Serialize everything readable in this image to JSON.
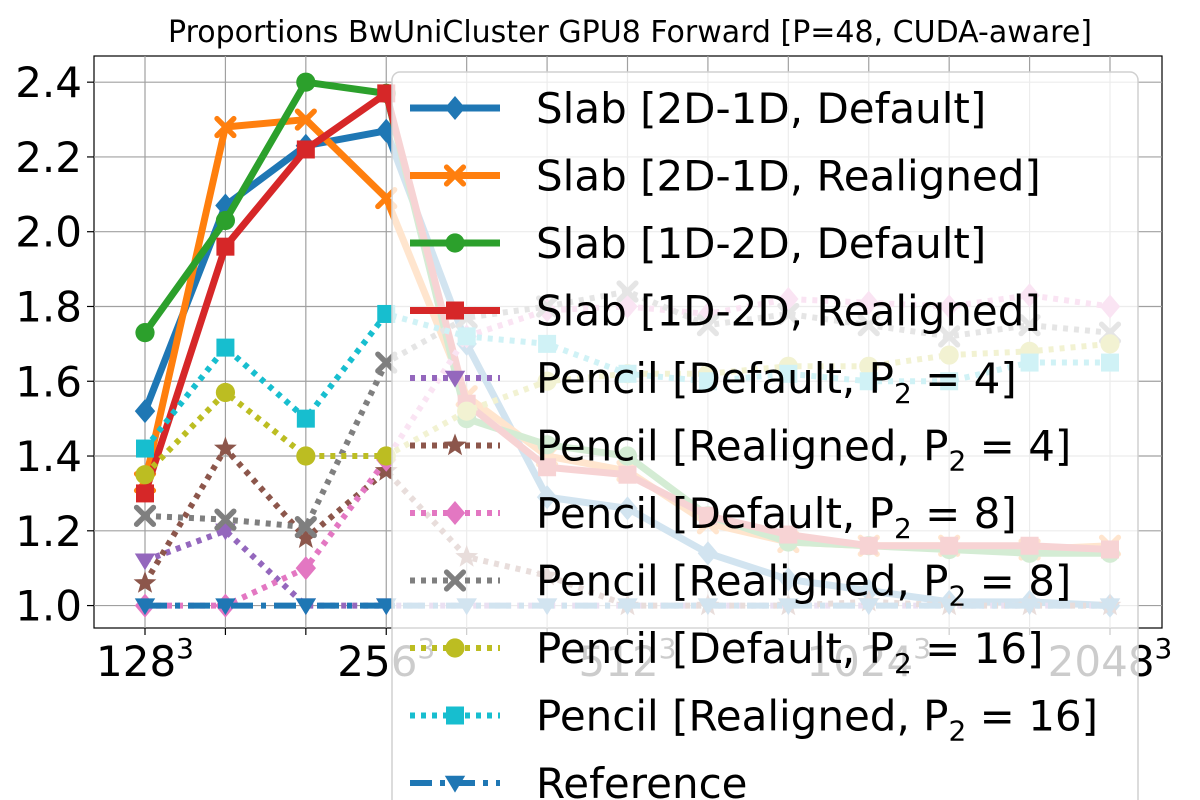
{
  "chart_data": {
    "type": "line",
    "title": "Proportions BwUniCluster GPU8 Forward [P=48, CUDA-aware]",
    "xlabel": "",
    "ylabel": "",
    "ylim": [
      0.94,
      2.47
    ],
    "x_positions": [
      0,
      1,
      2,
      3,
      4,
      5,
      6,
      7,
      8,
      9,
      10,
      11,
      12
    ],
    "x_tick_labels": [
      {
        "pos": 0,
        "base": "128",
        "exp": "3"
      },
      {
        "pos": 3,
        "base": "256",
        "exp": "3"
      },
      {
        "pos": 6,
        "base": "512",
        "exp": "3"
      },
      {
        "pos": 9,
        "base": "1024",
        "exp": "3"
      },
      {
        "pos": 12,
        "base": "2048",
        "exp": "3"
      }
    ],
    "y_ticks": [
      1.0,
      1.2,
      1.4,
      1.6,
      1.8,
      2.0,
      2.2,
      2.4
    ],
    "y_tick_labels": [
      "1.0",
      "1.2",
      "1.4",
      "1.6",
      "1.8",
      "2.0",
      "2.2",
      "2.4"
    ],
    "grid": true,
    "legend_position": "top-right",
    "series": [
      {
        "name": "Slab [2D-1D, Default]",
        "color": "#1f77b4",
        "style": "solid",
        "marker": "diamond",
        "values": [
          1.52,
          2.07,
          2.23,
          2.27,
          1.7,
          1.29,
          1.26,
          1.14,
          1.07,
          1.04,
          1.01,
          1.01,
          1.0
        ]
      },
      {
        "name": "Slab [2D-1D, Realigned]",
        "color": "#ff7f0e",
        "style": "solid",
        "marker": "x",
        "values": [
          1.33,
          2.28,
          2.3,
          2.09,
          1.56,
          1.4,
          1.36,
          1.22,
          1.17,
          1.16,
          1.16,
          1.15,
          1.16
        ]
      },
      {
        "name": "Slab [1D-2D, Default]",
        "color": "#2ca02c",
        "style": "solid",
        "marker": "circle",
        "values": [
          1.73,
          2.03,
          2.4,
          2.37,
          1.5,
          1.43,
          1.4,
          1.24,
          1.17,
          1.16,
          1.15,
          1.14,
          1.14
        ]
      },
      {
        "name": "Slab [1D-2D, Realigned]",
        "color": "#d62728",
        "style": "solid",
        "marker": "square",
        "values": [
          1.3,
          1.96,
          2.22,
          2.37,
          1.54,
          1.37,
          1.35,
          1.24,
          1.19,
          1.16,
          1.16,
          1.16,
          1.15
        ]
      },
      {
        "name": "Pencil [Default, P2=4]",
        "color": "#9467bd",
        "style": "dotted",
        "marker": "triangle-down",
        "values": [
          1.12,
          1.2,
          1.0,
          1.0,
          1.0,
          1.0,
          1.0,
          1.0,
          1.0,
          1.0,
          1.0,
          1.0,
          1.0
        ]
      },
      {
        "name": "Pencil [Realigned, P2=4]",
        "color": "#8c564b",
        "style": "dotted",
        "marker": "star",
        "values": [
          1.06,
          1.42,
          1.18,
          1.36,
          1.13,
          1.08,
          1.0,
          1.0,
          1.0,
          1.01,
          1.0,
          1.0,
          1.0
        ]
      },
      {
        "name": "Pencil [Default, P2=8]",
        "color": "#e377c2",
        "style": "dotted",
        "marker": "diamond",
        "values": [
          1.0,
          1.0,
          1.1,
          1.39,
          1.72,
          1.79,
          1.8,
          1.78,
          1.82,
          1.81,
          1.8,
          1.83,
          1.8
        ]
      },
      {
        "name": "Pencil [Realigned, P2=8]",
        "color": "#7f7f7f",
        "style": "dotted",
        "marker": "x",
        "values": [
          1.24,
          1.23,
          1.21,
          1.65,
          1.77,
          1.8,
          1.84,
          1.75,
          1.78,
          1.75,
          1.72,
          1.75,
          1.73
        ]
      },
      {
        "name": "Pencil [Default, P2=16]",
        "color": "#bcbd22",
        "style": "dotted",
        "marker": "circle",
        "values": [
          1.35,
          1.57,
          1.4,
          1.4,
          1.52,
          1.6,
          1.62,
          1.62,
          1.64,
          1.64,
          1.67,
          1.68,
          1.7
        ]
      },
      {
        "name": "Pencil [Realigned, P2=16]",
        "color": "#17becf",
        "style": "dotted",
        "marker": "square",
        "values": [
          1.42,
          1.69,
          1.5,
          1.78,
          1.72,
          1.7,
          1.62,
          1.6,
          1.62,
          1.6,
          1.6,
          1.65,
          1.65
        ]
      },
      {
        "name": "Reference",
        "color": "#1f77b4",
        "style": "dashdot",
        "marker": "triangle-down",
        "values": [
          1.0,
          1.0,
          1.0,
          1.0,
          1.0,
          1.0,
          1.0,
          1.0,
          1.0,
          1.0,
          1.0,
          1.0,
          1.0
        ]
      }
    ],
    "legend": [
      {
        "prefix": "Slab [2D-1D, Default]",
        "sub": "",
        "suffix": ""
      },
      {
        "prefix": "Slab [2D-1D, Realigned]",
        "sub": "",
        "suffix": ""
      },
      {
        "prefix": "Slab [1D-2D, Default]",
        "sub": "",
        "suffix": ""
      },
      {
        "prefix": "Slab [1D-2D, Realigned]",
        "sub": "",
        "suffix": ""
      },
      {
        "prefix": "Pencil [Default, P",
        "sub": "2",
        "suffix": " = 4]"
      },
      {
        "prefix": "Pencil [Realigned, P",
        "sub": "2",
        "suffix": " = 4]"
      },
      {
        "prefix": "Pencil [Default, P",
        "sub": "2",
        "suffix": " = 8]"
      },
      {
        "prefix": "Pencil [Realigned, P",
        "sub": "2",
        "suffix": " = 8]"
      },
      {
        "prefix": "Pencil [Default, P",
        "sub": "2",
        "suffix": " = 16]"
      },
      {
        "prefix": "Pencil [Realigned, P",
        "sub": "2",
        "suffix": " = 16]"
      },
      {
        "prefix": "Reference",
        "sub": "",
        "suffix": ""
      }
    ]
  }
}
